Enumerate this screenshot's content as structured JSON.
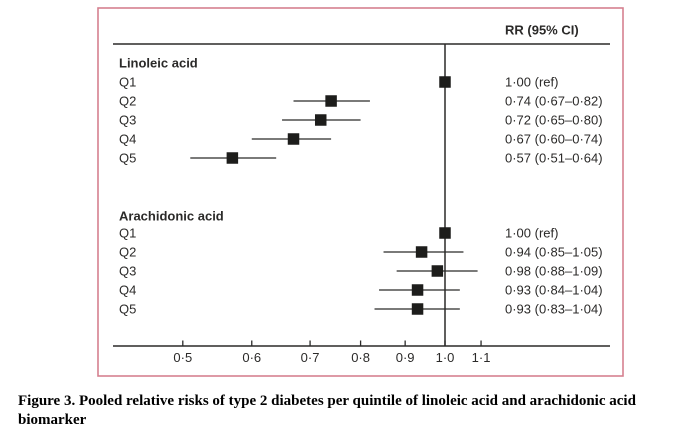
{
  "chart_data": {
    "type": "forest",
    "column_header": "RR (95% CI)",
    "x_axis": {
      "scale": "log",
      "ticks": [
        0.5,
        0.6,
        0.7,
        0.8,
        0.9,
        1.0,
        1.1
      ],
      "tick_labels": [
        "0·5",
        "0·6",
        "0·7",
        "0·8",
        "0·9",
        "1·0",
        "1·1"
      ],
      "reference_value": 1.0,
      "xlim": [
        0.42,
        1.55
      ],
      "grid": false
    },
    "groups": [
      {
        "label": "Linoleic acid",
        "rows": [
          {
            "label": "Q1",
            "rr": 1.0,
            "lo": null,
            "hi": null,
            "text": "1·00 (ref)"
          },
          {
            "label": "Q2",
            "rr": 0.74,
            "lo": 0.67,
            "hi": 0.82,
            "text": "0·74 (0·67–0·82)"
          },
          {
            "label": "Q3",
            "rr": 0.72,
            "lo": 0.65,
            "hi": 0.8,
            "text": "0·72 (0·65–0·80)"
          },
          {
            "label": "Q4",
            "rr": 0.67,
            "lo": 0.6,
            "hi": 0.74,
            "text": "0·67 (0·60–0·74)"
          },
          {
            "label": "Q5",
            "rr": 0.57,
            "lo": 0.51,
            "hi": 0.64,
            "text": "0·57 (0·51–0·64)"
          }
        ]
      },
      {
        "label": "Arachidonic acid",
        "rows": [
          {
            "label": "Q1",
            "rr": 1.0,
            "lo": null,
            "hi": null,
            "text": "1·00 (ref)"
          },
          {
            "label": "Q2",
            "rr": 0.94,
            "lo": 0.85,
            "hi": 1.05,
            "text": "0·94 (0·85–1·05)"
          },
          {
            "label": "Q3",
            "rr": 0.98,
            "lo": 0.88,
            "hi": 1.09,
            "text": "0·98 (0·88–1·09)"
          },
          {
            "label": "Q4",
            "rr": 0.93,
            "lo": 0.84,
            "hi": 1.04,
            "text": "0·93 (0·84–1·04)"
          },
          {
            "label": "Q5",
            "rr": 0.93,
            "lo": 0.83,
            "hi": 1.04,
            "text": "0·93 (0·83–1·04)"
          }
        ]
      }
    ]
  },
  "caption": {
    "text": "Figure 3. Pooled relative risks of type 2 diabetes per quintile of linoleic acid and arachidonic acid biomarker"
  },
  "colors": {
    "frame_border": "#d5808f",
    "ink": "#2b2a29",
    "marker": "#1d1d1b"
  }
}
